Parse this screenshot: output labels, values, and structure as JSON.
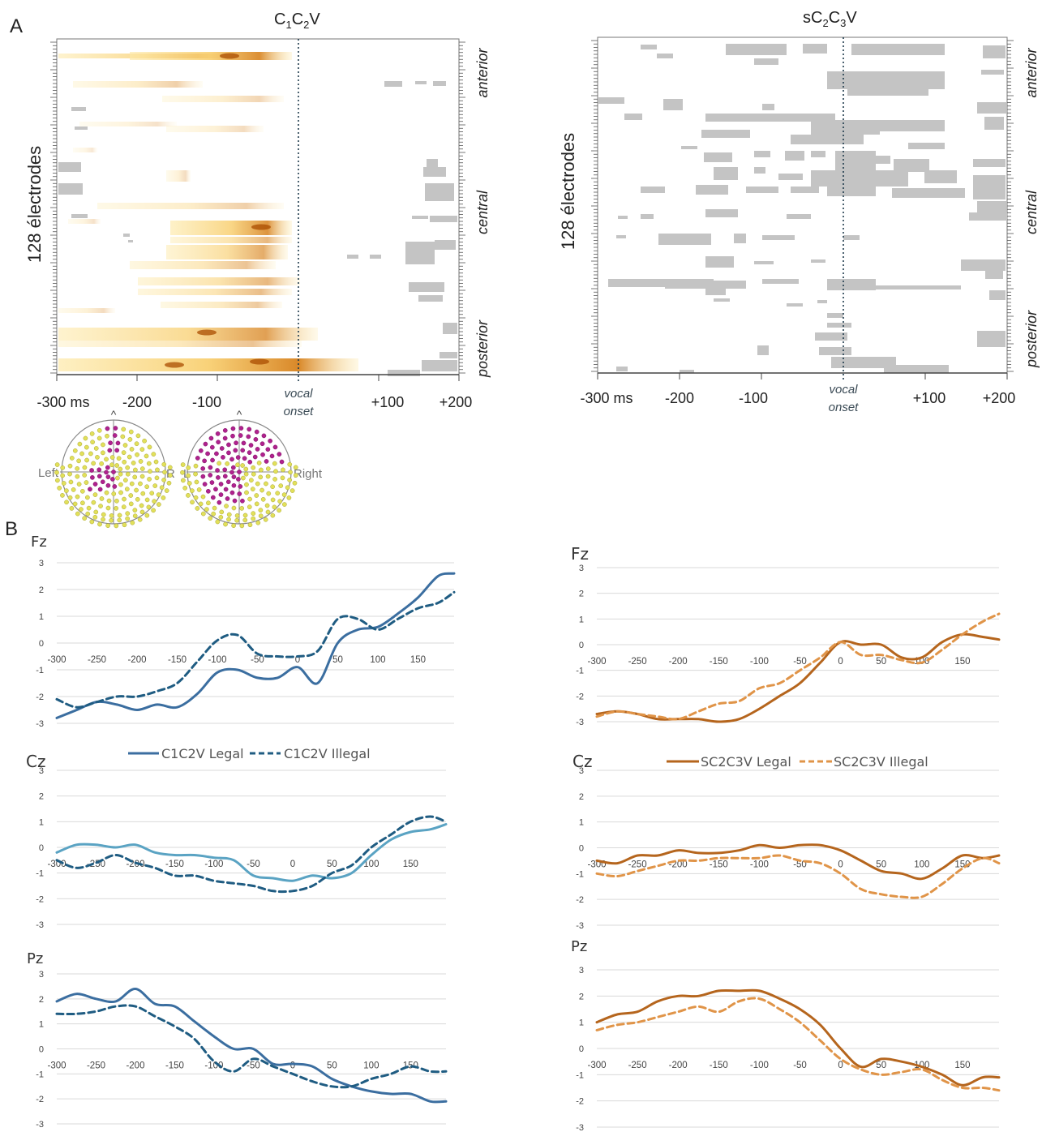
{
  "panel_labels": {
    "a": "A",
    "b": "B"
  },
  "heatmap_left": {
    "title_main": "C",
    "title_sub1": "1",
    "title_mid": "C",
    "title_sub2": "2",
    "title_end": "V",
    "ylabel": "128 électrodes",
    "xticks": [
      "-300 ms",
      "-200",
      "-100",
      "+100",
      "+200"
    ],
    "onset_label": [
      "vocal",
      "onset"
    ],
    "regions": [
      "anterior",
      "central",
      "posterior"
    ]
  },
  "heatmap_right": {
    "title_pre": "sC",
    "title_sub1": "2",
    "title_mid": "C",
    "title_sub2": "3",
    "title_end": "V",
    "ylabel": "128 électrodes",
    "xticks": [
      "-300 ms",
      "-200",
      "-100",
      "+100",
      "+200"
    ],
    "onset_label": [
      "vocal",
      "onset"
    ],
    "regions": [
      "anterior",
      "central",
      "posterior"
    ]
  },
  "headmaps": {
    "left_head": {
      "left_label": "Left",
      "right_label": "R",
      "nose": "^"
    },
    "right_head": {
      "left_label": "L",
      "right_label": "Right",
      "nose": "^"
    }
  },
  "colors": {
    "legal_c1c2v": "#3b6ea0",
    "illegal_c1c2v": "#1f5c82",
    "legal_c1c2v_cz": "#5aa3c3",
    "legal_sc2c3v": "#b5651d",
    "illegal_sc2c3v": "#e09448",
    "grid": "#d9d9d9",
    "heat_fill": "#fde8a0",
    "heat_dark": "#b84a00",
    "grey_sig": "#c4c4c4",
    "electrode_yellow": "#e2e05a",
    "electrode_magenta": "#b0228e"
  },
  "legends": {
    "left": [
      {
        "label": "C1C2V Legal",
        "style": "solid"
      },
      {
        "label": "C1C2V Illegal",
        "style": "dashed"
      }
    ],
    "right": [
      {
        "label": "SC2C3V Legal",
        "style": "solid"
      },
      {
        "label": "SC2C3V Illegal",
        "style": "dashed"
      }
    ]
  },
  "chart_data": [
    {
      "type": "line",
      "title": "Fz",
      "x": [
        -300,
        -275,
        -250,
        -225,
        -200,
        -175,
        -150,
        -125,
        -100,
        -75,
        -50,
        -25,
        0,
        25,
        50,
        75,
        100,
        125,
        150,
        175,
        195
      ],
      "xticks": [
        "-300",
        "-250",
        "-200",
        "-150",
        "-100",
        "-50",
        "0",
        "50",
        "100",
        "150"
      ],
      "yticks": [
        "3",
        "2",
        "1",
        "0",
        "-1",
        "-2",
        "-3"
      ],
      "ylim": [
        -3,
        3
      ],
      "series": [
        {
          "name": "C1C2V Legal",
          "style": "solid",
          "values": [
            -2.8,
            -2.5,
            -2.2,
            -2.3,
            -2.5,
            -2.3,
            -2.4,
            -1.9,
            -1.1,
            -1.0,
            -1.3,
            -1.3,
            -0.9,
            -1.5,
            0.0,
            0.5,
            0.6,
            1.1,
            1.7,
            2.5,
            2.6
          ]
        },
        {
          "name": "C1C2V Illegal",
          "style": "dashed",
          "values": [
            -2.1,
            -2.4,
            -2.2,
            -2.0,
            -2.0,
            -1.8,
            -1.5,
            -0.7,
            0.1,
            0.3,
            -0.4,
            -0.5,
            -0.5,
            -0.3,
            0.9,
            0.9,
            0.5,
            0.9,
            1.3,
            1.5,
            1.9
          ]
        }
      ]
    },
    {
      "type": "line",
      "title": "Cz",
      "x": [
        -300,
        -275,
        -250,
        -225,
        -200,
        -175,
        -150,
        -125,
        -100,
        -75,
        -50,
        -25,
        0,
        25,
        50,
        75,
        100,
        125,
        150,
        175,
        195
      ],
      "xticks": [
        "-300",
        "-250",
        "-200",
        "-150",
        "-100",
        "-50",
        "0",
        "50",
        "100",
        "150"
      ],
      "yticks": [
        "3",
        "2",
        "1",
        "0",
        "-1",
        "-2",
        "-3"
      ],
      "ylim": [
        -3,
        3
      ],
      "series": [
        {
          "name": "C1C2V Legal",
          "style": "solid",
          "values": [
            -0.2,
            0.1,
            0.1,
            0.0,
            0.1,
            -0.2,
            -0.3,
            -0.3,
            -0.4,
            -0.5,
            -1.1,
            -1.2,
            -1.3,
            -1.1,
            -1.2,
            -1.0,
            -0.3,
            0.3,
            0.6,
            0.7,
            0.9
          ]
        },
        {
          "name": "C1C2V Illegal",
          "style": "dashed",
          "values": [
            -0.5,
            -0.8,
            -0.6,
            -0.3,
            -0.6,
            -0.8,
            -1.1,
            -1.1,
            -1.3,
            -1.4,
            -1.5,
            -1.7,
            -1.7,
            -1.5,
            -1.0,
            -0.7,
            0.0,
            0.5,
            1.0,
            1.2,
            1.0
          ]
        }
      ]
    },
    {
      "type": "line",
      "title": "Pz",
      "x": [
        -300,
        -275,
        -250,
        -225,
        -200,
        -175,
        -150,
        -125,
        -100,
        -75,
        -50,
        -25,
        0,
        25,
        50,
        75,
        100,
        125,
        150,
        175,
        195
      ],
      "xticks": [
        "-300",
        "-250",
        "-200",
        "-150",
        "-100",
        "-50",
        "0",
        "50",
        "100",
        "150"
      ],
      "yticks": [
        "3",
        "2",
        "1",
        "0",
        "-1",
        "-2",
        "-3"
      ],
      "ylim": [
        -3,
        3
      ],
      "series": [
        {
          "name": "C1C2V Legal",
          "style": "solid",
          "values": [
            1.9,
            2.2,
            2.0,
            1.9,
            2.4,
            1.8,
            1.7,
            1.1,
            0.5,
            0.0,
            0.0,
            -0.6,
            -0.6,
            -0.7,
            -1.2,
            -1.5,
            -1.7,
            -1.8,
            -1.8,
            -2.1,
            -2.1
          ]
        },
        {
          "name": "C1C2V Illegal",
          "style": "dashed",
          "values": [
            1.4,
            1.4,
            1.5,
            1.7,
            1.7,
            1.3,
            0.9,
            0.4,
            -0.5,
            -0.9,
            -0.4,
            -0.7,
            -1.0,
            -1.3,
            -1.5,
            -1.5,
            -1.2,
            -1.0,
            -0.7,
            -0.9,
            -0.9
          ]
        }
      ]
    },
    {
      "type": "line",
      "title": "Fz",
      "x": [
        -300,
        -275,
        -250,
        -225,
        -200,
        -175,
        -150,
        -125,
        -100,
        -75,
        -50,
        -25,
        0,
        25,
        50,
        75,
        100,
        125,
        150,
        175,
        195
      ],
      "xticks": [
        "-300",
        "-250",
        "-200",
        "-150",
        "-100",
        "-50",
        "0",
        "50",
        "100",
        "150"
      ],
      "yticks": [
        "3",
        "2",
        "1",
        "0",
        "-1",
        "-2",
        "-3"
      ],
      "ylim": [
        -3,
        3
      ],
      "series": [
        {
          "name": "SC2C3V Legal",
          "style": "solid",
          "values": [
            -2.7,
            -2.6,
            -2.7,
            -2.9,
            -2.9,
            -2.9,
            -3.0,
            -2.9,
            -2.5,
            -2.0,
            -1.5,
            -0.7,
            0.1,
            0.0,
            0.0,
            -0.5,
            -0.5,
            0.1,
            0.4,
            0.3,
            0.2
          ]
        },
        {
          "name": "SC2C3V Illegal",
          "style": "dashed",
          "values": [
            -2.8,
            -2.6,
            -2.7,
            -2.8,
            -2.9,
            -2.6,
            -2.3,
            -2.2,
            -1.7,
            -1.5,
            -1.0,
            -0.5,
            0.1,
            -0.4,
            -0.4,
            -0.6,
            -0.7,
            -0.2,
            0.4,
            0.9,
            1.2
          ]
        }
      ]
    },
    {
      "type": "line",
      "title": "Cz",
      "x": [
        -300,
        -275,
        -250,
        -225,
        -200,
        -175,
        -150,
        -125,
        -100,
        -75,
        -50,
        -25,
        0,
        25,
        50,
        75,
        100,
        125,
        150,
        175,
        195
      ],
      "xticks": [
        "-300",
        "-250",
        "-200",
        "-150",
        "-100",
        "-50",
        "0",
        "50",
        "100",
        "150"
      ],
      "yticks": [
        "3",
        "2",
        "1",
        "0",
        "-1",
        "-2",
        "-3"
      ],
      "ylim": [
        -3,
        3
      ],
      "series": [
        {
          "name": "SC2C3V Legal",
          "style": "solid",
          "values": [
            -0.5,
            -0.6,
            -0.3,
            -0.3,
            -0.1,
            -0.2,
            -0.2,
            -0.1,
            0.1,
            0.0,
            0.1,
            0.1,
            -0.1,
            -0.5,
            -0.9,
            -1.0,
            -1.2,
            -0.8,
            -0.3,
            -0.4,
            -0.3
          ]
        },
        {
          "name": "SC2C3V Illegal",
          "style": "dashed",
          "values": [
            -1.0,
            -1.1,
            -0.9,
            -0.7,
            -0.5,
            -0.5,
            -0.4,
            -0.4,
            -0.4,
            -0.3,
            -0.5,
            -0.6,
            -1.0,
            -1.6,
            -1.8,
            -1.9,
            -1.9,
            -1.4,
            -0.8,
            -0.4,
            -0.6
          ]
        }
      ]
    },
    {
      "type": "line",
      "title": "Pz",
      "x": [
        -300,
        -275,
        -250,
        -225,
        -200,
        -175,
        -150,
        -125,
        -100,
        -75,
        -50,
        -25,
        0,
        25,
        50,
        75,
        100,
        125,
        150,
        175,
        195
      ],
      "xticks": [
        "-300",
        "-250",
        "-200",
        "-150",
        "-100",
        "-50",
        "0",
        "50",
        "100",
        "150"
      ],
      "yticks": [
        "3",
        "2",
        "1",
        "0",
        "-1",
        "-2",
        "-3"
      ],
      "ylim": [
        -3,
        3
      ],
      "series": [
        {
          "name": "SC2C3V Legal",
          "style": "solid",
          "values": [
            1.0,
            1.3,
            1.4,
            1.8,
            2.0,
            2.0,
            2.2,
            2.2,
            2.2,
            1.9,
            1.5,
            0.9,
            0.0,
            -0.7,
            -0.4,
            -0.5,
            -0.7,
            -1.0,
            -1.4,
            -1.1,
            -1.1
          ]
        },
        {
          "name": "SC2C3V Illegal",
          "style": "dashed",
          "values": [
            0.7,
            0.9,
            1.0,
            1.2,
            1.4,
            1.6,
            1.4,
            1.8,
            1.9,
            1.5,
            1.0,
            0.3,
            -0.4,
            -0.8,
            -1.0,
            -0.9,
            -0.8,
            -1.2,
            -1.5,
            -1.5,
            -1.6
          ]
        }
      ]
    }
  ]
}
